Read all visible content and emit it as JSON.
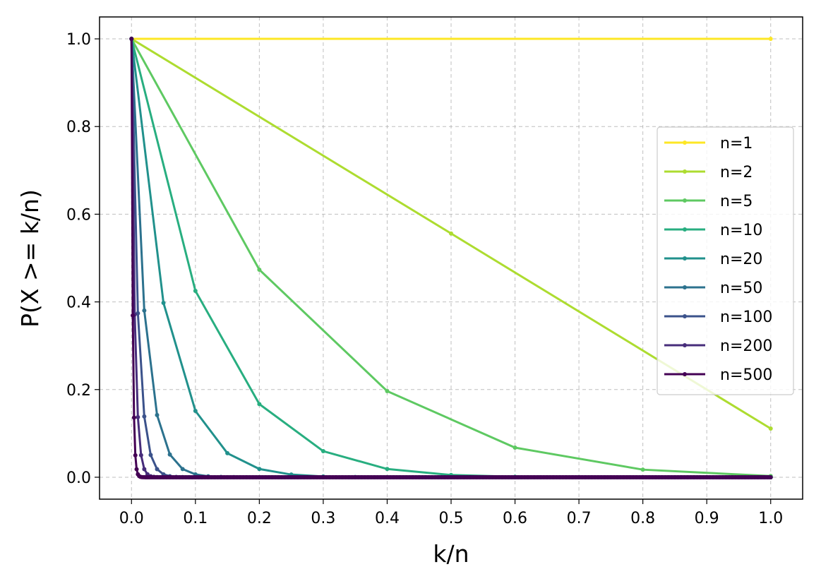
{
  "chart_data": {
    "type": "line",
    "title": "",
    "xlabel": "k/n",
    "ylabel": "P(X >= k/n)",
    "xlim": [
      -0.05,
      1.05
    ],
    "ylim": [
      -0.05,
      1.05
    ],
    "xticks": [
      0.0,
      0.1,
      0.2,
      0.3,
      0.4,
      0.5,
      0.6,
      0.7,
      0.8,
      0.9,
      1.0
    ],
    "xtick_labels": [
      "0.0",
      "0.1",
      "0.2",
      "0.3",
      "0.4",
      "0.5",
      "0.6",
      "0.7",
      "0.8",
      "0.9",
      "1.0"
    ],
    "yticks": [
      0.0,
      0.2,
      0.4,
      0.6,
      0.8,
      1.0
    ],
    "ytick_labels": [
      "0.0",
      "0.2",
      "0.4",
      "0.6",
      "0.8",
      "1.0"
    ],
    "grid": true,
    "legend_position": "center-right",
    "series": [
      {
        "name": "n=1",
        "n": 1,
        "color": "#fde725"
      },
      {
        "name": "n=2",
        "n": 2,
        "color": "#addc30"
      },
      {
        "name": "n=5",
        "n": 5,
        "color": "#5ec962"
      },
      {
        "name": "n=10",
        "n": 10,
        "color": "#28ae80"
      },
      {
        "name": "n=20",
        "n": 20,
        "color": "#21918c"
      },
      {
        "name": "n=50",
        "n": 50,
        "color": "#2c728e"
      },
      {
        "name": "n=100",
        "n": 100,
        "color": "#3b528b"
      },
      {
        "name": "n=200",
        "n": 200,
        "color": "#472d7b"
      },
      {
        "name": "n=500",
        "n": 500,
        "color": "#440154"
      }
    ]
  }
}
